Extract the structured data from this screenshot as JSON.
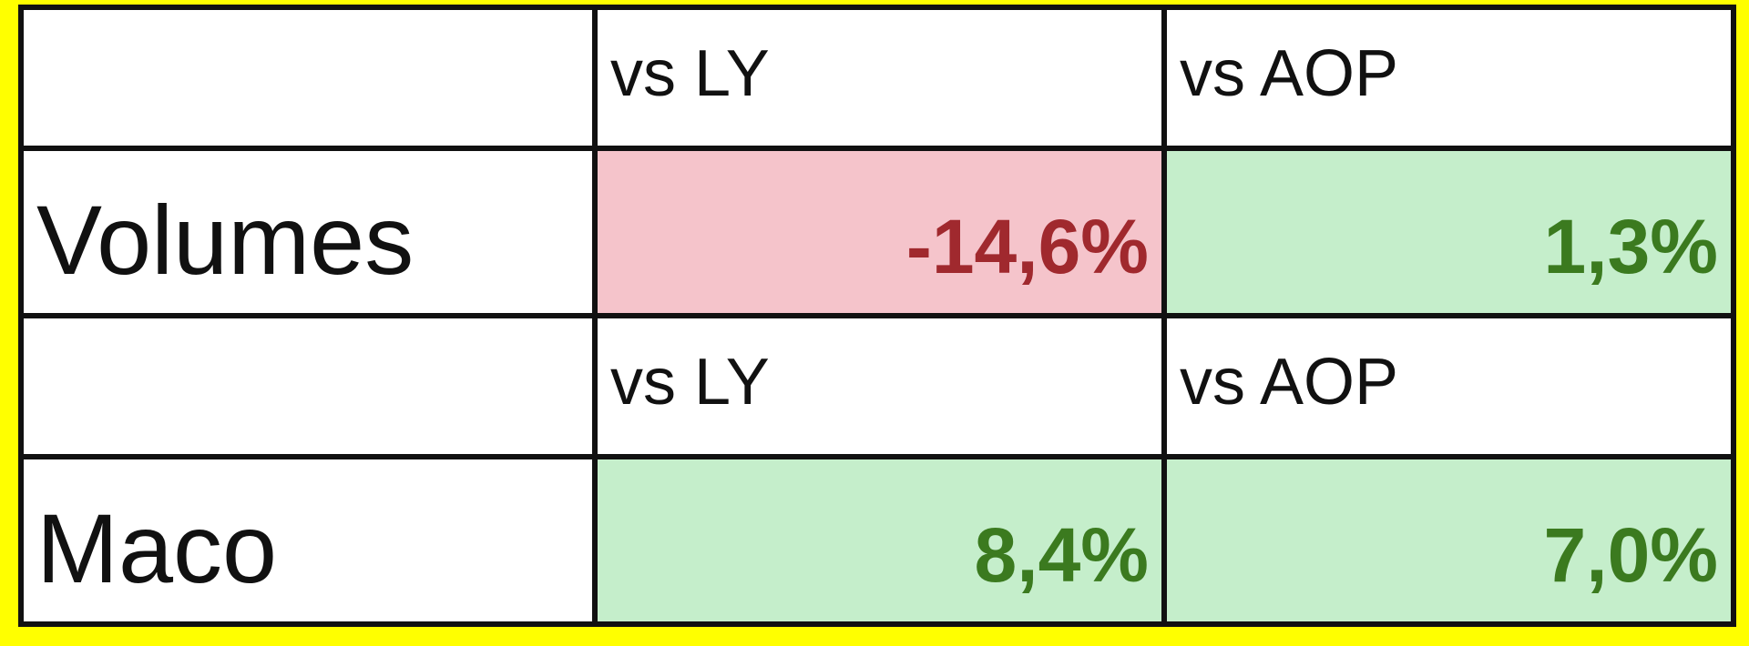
{
  "sections": [
    {
      "label": "Volumes",
      "headers": [
        "vs LY",
        "vs AOP"
      ],
      "values": [
        "-14,6%",
        "1,3%"
      ]
    },
    {
      "label": "Maco",
      "headers": [
        "vs LY",
        "vs AOP"
      ],
      "values": [
        "8,4%",
        "7,0%"
      ]
    }
  ]
}
